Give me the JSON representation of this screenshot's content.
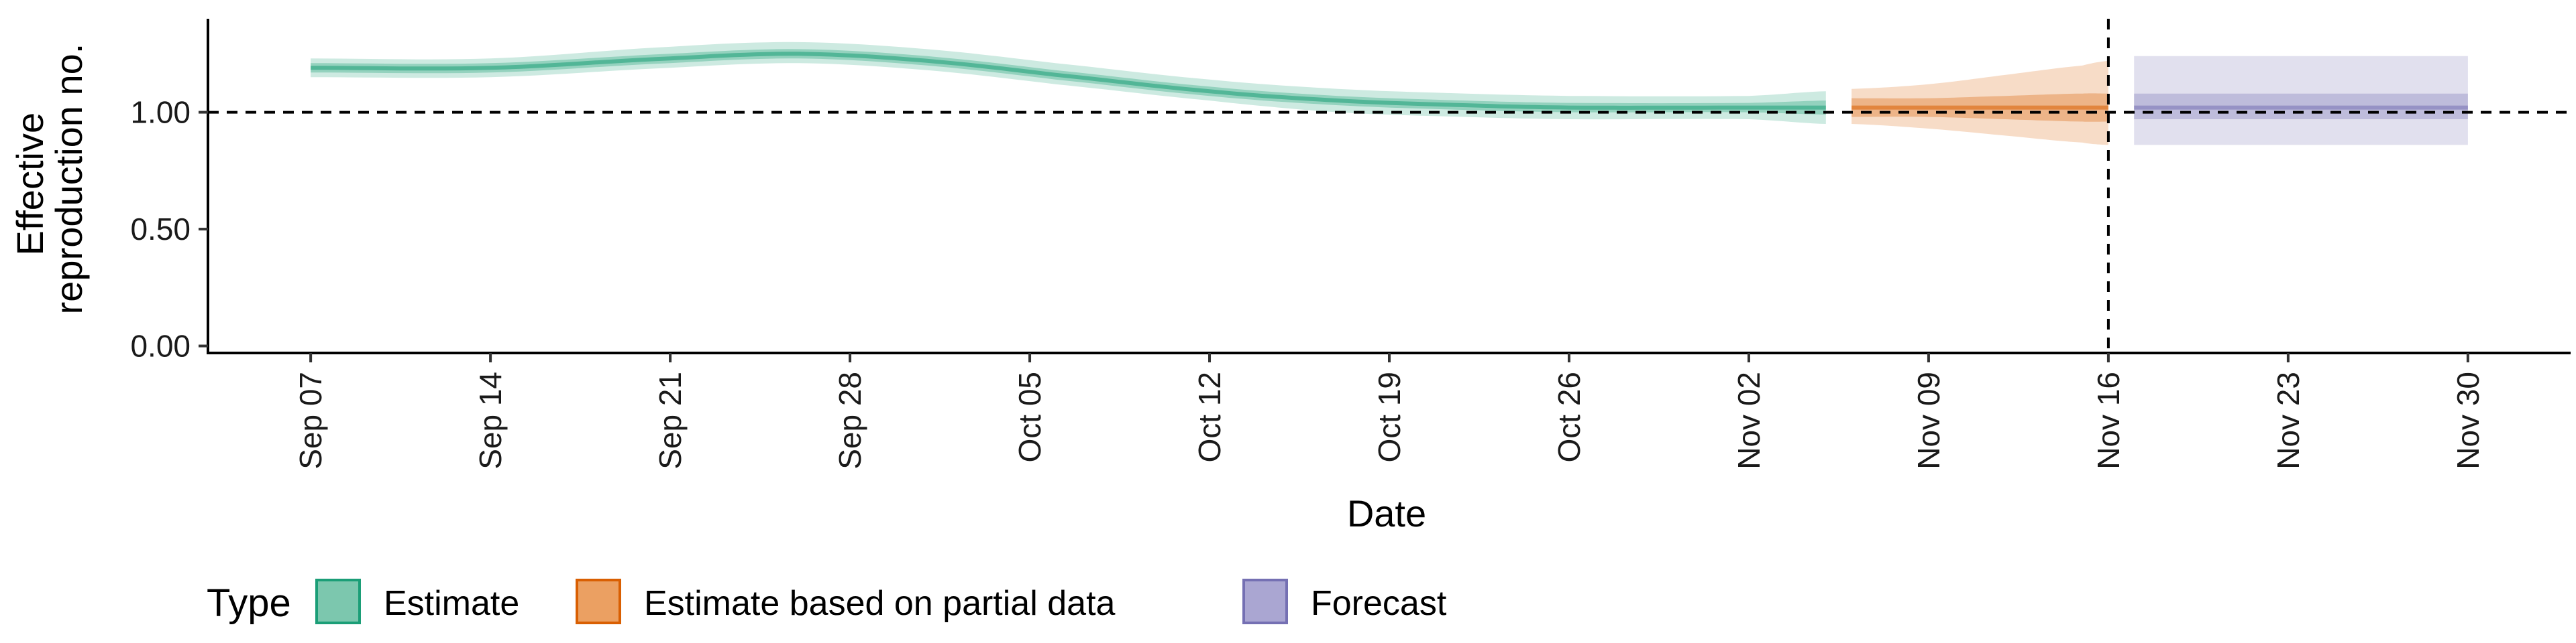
{
  "chart_data": {
    "type": "area",
    "xlabel": "Date",
    "ylabel_lines": [
      "Effective",
      "reproduction no."
    ],
    "y_ticks": [
      0.0,
      0.5,
      1.0
    ],
    "y_tick_labels": [
      "0.00",
      "0.50",
      "1.00"
    ],
    "ylim": [
      -0.03,
      1.4
    ],
    "x_tick_dates": [
      "2020-09-07",
      "2020-09-14",
      "2020-09-21",
      "2020-09-28",
      "2020-10-05",
      "2020-10-12",
      "2020-10-19",
      "2020-10-26",
      "2020-11-02",
      "2020-11-09",
      "2020-11-16",
      "2020-11-23",
      "2020-11-30"
    ],
    "x_tick_labels": [
      "Sep 07",
      "Sep 14",
      "Sep 21",
      "Sep 28",
      "Oct 05",
      "Oct 12",
      "Oct 19",
      "Oct 26",
      "Nov 02",
      "Nov 09",
      "Nov 16",
      "Nov 23",
      "Nov 30"
    ],
    "xlim": [
      "2020-09-03",
      "2020-12-04"
    ],
    "reference_line_y": 1.0,
    "vertical_line_date": "2020-11-16",
    "legend": {
      "title": "Type",
      "position": "bottom-left",
      "items": [
        {
          "label": "Estimate",
          "fill": "#7CC7AE",
          "stroke": "#1B9E77"
        },
        {
          "label": "Estimate based on partial data",
          "fill": "#EBA062",
          "stroke": "#D95F02"
        },
        {
          "label": "Forecast",
          "fill": "#AAA6D2",
          "stroke": "#7570B3"
        }
      ]
    },
    "series": [
      {
        "name": "Estimate",
        "color": "#1B9E77",
        "x": [
          "2020-09-07",
          "2020-09-14",
          "2020-09-21",
          "2020-09-26",
          "2020-10-01",
          "2020-10-06",
          "2020-10-12",
          "2020-10-17",
          "2020-10-22",
          "2020-10-26",
          "2020-11-02",
          "2020-11-05"
        ],
        "median": [
          1.19,
          1.19,
          1.23,
          1.25,
          1.22,
          1.16,
          1.09,
          1.05,
          1.03,
          1.02,
          1.02,
          1.02
        ],
        "lower_50": [
          1.17,
          1.17,
          1.21,
          1.23,
          1.2,
          1.14,
          1.07,
          1.03,
          1.01,
          1.0,
          1.0,
          0.99
        ],
        "upper_50": [
          1.21,
          1.21,
          1.25,
          1.27,
          1.24,
          1.18,
          1.11,
          1.07,
          1.05,
          1.04,
          1.04,
          1.05
        ],
        "lower_90": [
          1.15,
          1.15,
          1.19,
          1.21,
          1.18,
          1.12,
          1.05,
          1.0,
          0.98,
          0.97,
          0.97,
          0.95
        ],
        "upper_90": [
          1.23,
          1.23,
          1.28,
          1.3,
          1.27,
          1.21,
          1.14,
          1.1,
          1.08,
          1.07,
          1.07,
          1.09
        ]
      },
      {
        "name": "Estimate based on partial data",
        "color": "#D95F02",
        "x": [
          "2020-11-06",
          "2020-11-09",
          "2020-11-12",
          "2020-11-15",
          "2020-11-16"
        ],
        "median": [
          1.02,
          1.02,
          1.02,
          1.02,
          1.02
        ],
        "lower_50": [
          0.98,
          0.98,
          0.97,
          0.96,
          0.96
        ],
        "upper_50": [
          1.06,
          1.06,
          1.07,
          1.08,
          1.08
        ],
        "lower_90": [
          0.95,
          0.93,
          0.9,
          0.87,
          0.86
        ],
        "upper_90": [
          1.1,
          1.12,
          1.16,
          1.2,
          1.22
        ]
      },
      {
        "name": "Forecast",
        "color": "#7570B3",
        "x": [
          "2020-11-17",
          "2020-11-30"
        ],
        "median": [
          1.02,
          1.02
        ],
        "lower_50": [
          0.97,
          0.97
        ],
        "upper_50": [
          1.08,
          1.08
        ],
        "lower_90": [
          0.86,
          0.86
        ],
        "upper_90": [
          1.24,
          1.24
        ]
      }
    ]
  }
}
